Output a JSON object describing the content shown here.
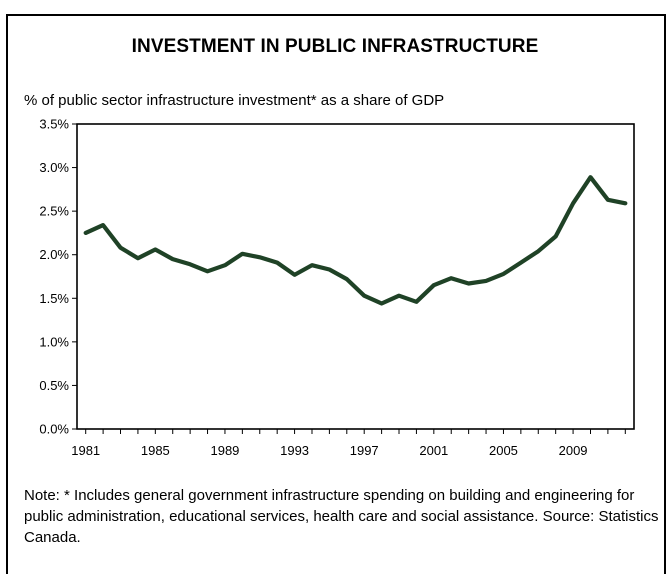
{
  "title": "INVESTMENT IN PUBLIC INFRASTRUCTURE",
  "subtitle": "% of public sector infrastructure investment* as a share of GDP",
  "note": "Note: * Includes general government infrastructure spending on building and engineering for public administration, educational services, health care and social assistance. Source: Statistics Canada.",
  "colors": {
    "line": "#1f4226",
    "axis": "#000000"
  },
  "chart_data": {
    "type": "line",
    "title": "INVESTMENT IN PUBLIC INFRASTRUCTURE",
    "ylabel": "% of public sector infrastructure investment* as a share of GDP",
    "xlabel": "",
    "x": [
      1981,
      1982,
      1983,
      1984,
      1985,
      1986,
      1987,
      1988,
      1989,
      1990,
      1991,
      1992,
      1993,
      1994,
      1995,
      1996,
      1997,
      1998,
      1999,
      2000,
      2001,
      2002,
      2003,
      2004,
      2005,
      2006,
      2007,
      2008,
      2009,
      2010,
      2011,
      2012
    ],
    "series": [
      {
        "values": [
          2.25,
          2.34,
          2.08,
          1.96,
          2.06,
          1.95,
          1.89,
          1.81,
          1.88,
          2.01,
          1.97,
          1.91,
          1.77,
          1.88,
          1.83,
          1.72,
          1.53,
          1.44,
          1.53,
          1.46,
          1.65,
          1.73,
          1.67,
          1.7,
          1.78,
          1.91,
          2.04,
          2.21,
          2.59,
          2.89,
          2.63,
          2.59
        ]
      }
    ],
    "xticks": [
      "1981",
      "1985",
      "1989",
      "1993",
      "1997",
      "2001",
      "2005",
      "2009"
    ],
    "yticks": [
      "0.0%",
      "0.5%",
      "1.0%",
      "1.5%",
      "2.0%",
      "2.5%",
      "3.0%",
      "3.5%"
    ],
    "ylim": [
      0,
      3.5
    ],
    "grid": false,
    "legend": "none"
  }
}
